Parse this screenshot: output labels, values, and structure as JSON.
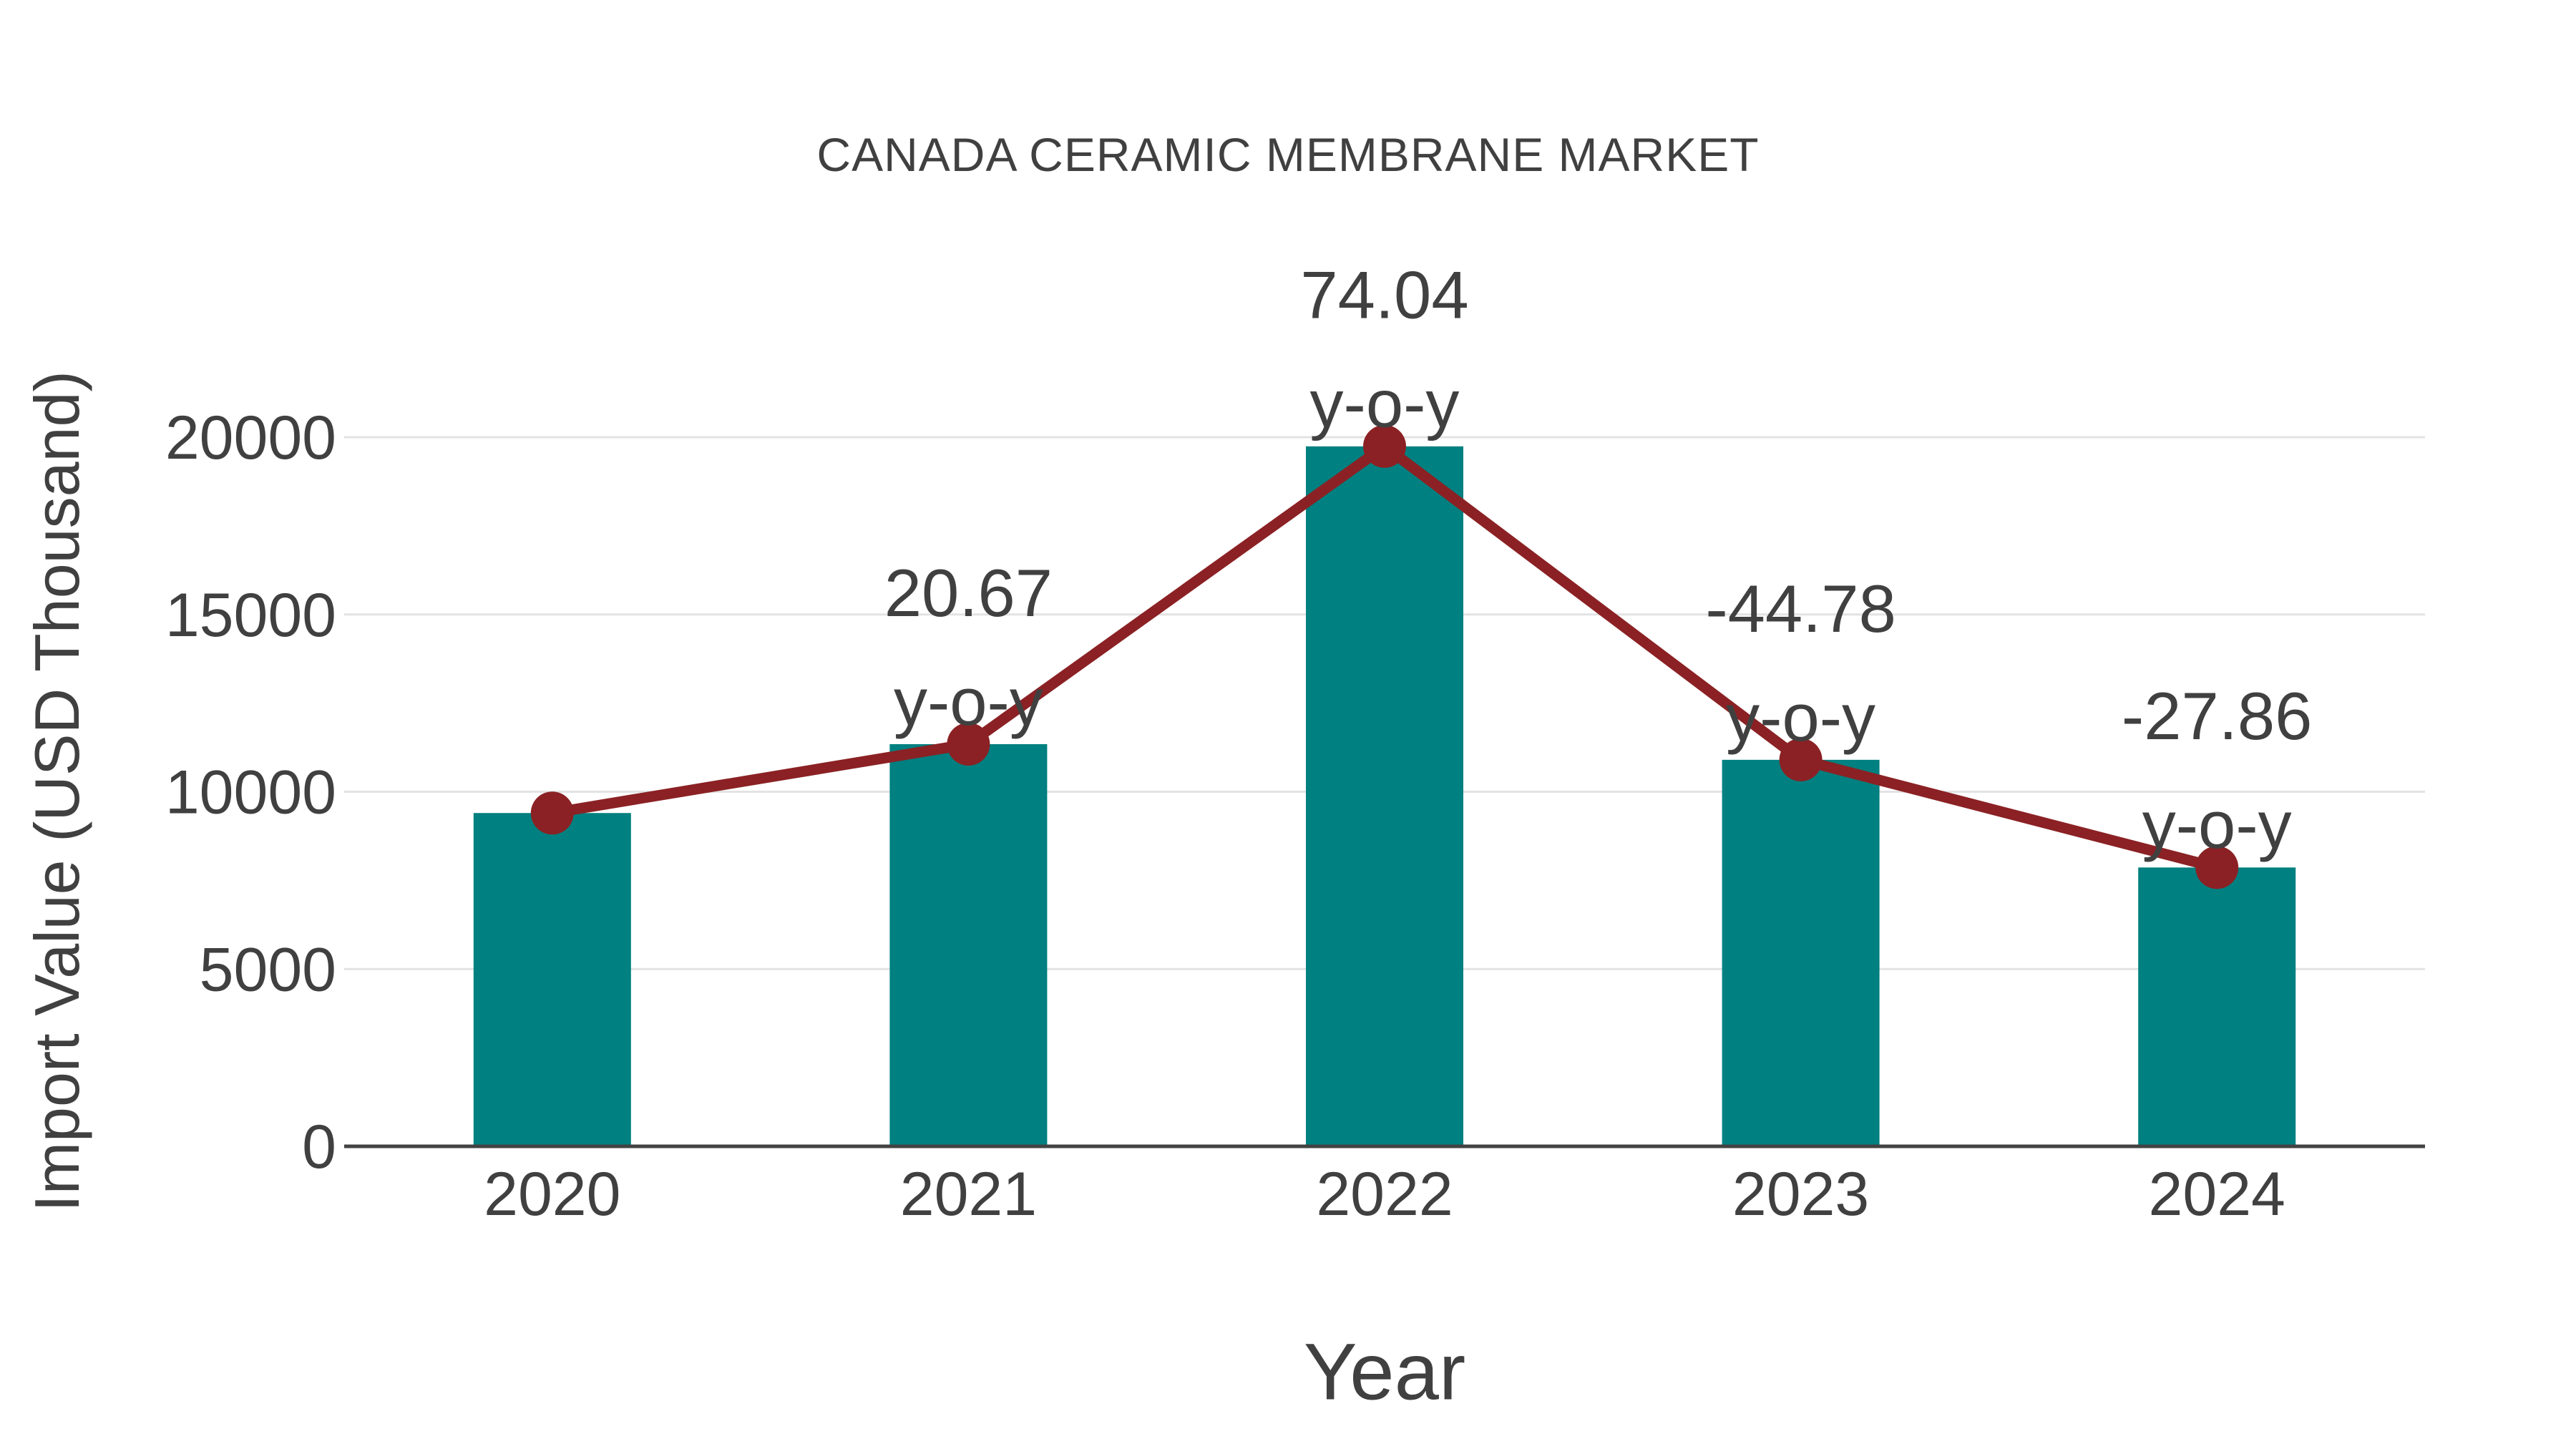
{
  "chart_data": {
    "type": "bar",
    "title": "CANADA CERAMIC MEMBRANE MARKET",
    "xlabel": "Year",
    "ylabel": "Import Value (USD Thousand)",
    "categories": [
      "2020",
      "2021",
      "2022",
      "2023",
      "2024"
    ],
    "series": [
      {
        "name": "Import Value bars",
        "type": "bar",
        "values": [
          9400,
          11343,
          19742,
          10901,
          7864
        ]
      },
      {
        "name": "Import Value trend",
        "type": "line",
        "values": [
          9400,
          11343,
          19742,
          10901,
          7864
        ]
      }
    ],
    "annotations": [
      {
        "category": "2021",
        "value": "20.67",
        "suffix": "y-o-y"
      },
      {
        "category": "2022",
        "value": "74.04",
        "suffix": "y-o-y"
      },
      {
        "category": "2023",
        "value": "-44.78",
        "suffix": "y-o-y"
      },
      {
        "category": "2024",
        "value": "-27.86",
        "suffix": "y-o-y"
      }
    ],
    "yticks": [
      0,
      5000,
      10000,
      15000,
      20000
    ],
    "ylim": [
      0,
      20000
    ],
    "grid": true,
    "legend": false,
    "colors": {
      "bar": "#008080",
      "line": "#8b2124",
      "grid": "#e3e3e3",
      "axis": "#424242",
      "text": "#404040"
    }
  }
}
